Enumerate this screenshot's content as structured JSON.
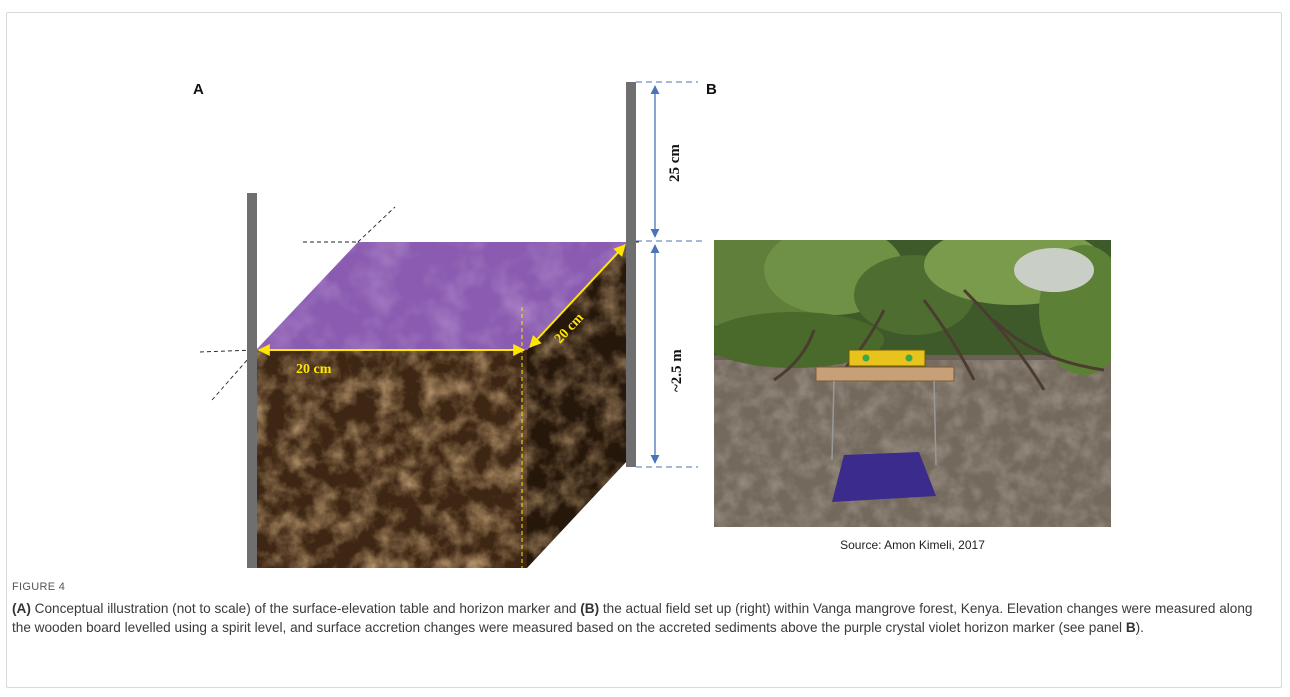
{
  "panels": {
    "a_label": "A",
    "b_label": "B"
  },
  "diagram": {
    "width_label": "20 cm",
    "depth_label": "20 cm",
    "top_height_label": "25 cm",
    "bottom_height_label": "~2.5 m",
    "colors": {
      "soil": "#3d2613",
      "soil_dark": "#26170b",
      "marker_purple": "#8a5bb0",
      "pole": "#6f6f6f",
      "dimension_yellow": "#ffe600",
      "dimension_blue": "#4a74b8"
    }
  },
  "photo": {
    "credit": "Source: Amon Kimeli, 2017"
  },
  "caption": {
    "title": "FIGURE 4",
    "seg1": "(A)",
    "seg2": " Conceptual illustration (not to scale) of the surface-elevation table and horizon marker and ",
    "seg3": "(B)",
    "seg4": " the actual field set up (right) within Vanga mangrove forest, Kenya. Elevation changes were measured along the wooden board levelled using a spirit level, and surface accretion changes were measured based on the accreted sediments above the purple crystal violet horizon marker (see panel ",
    "seg5": "B",
    "seg6": ")."
  }
}
